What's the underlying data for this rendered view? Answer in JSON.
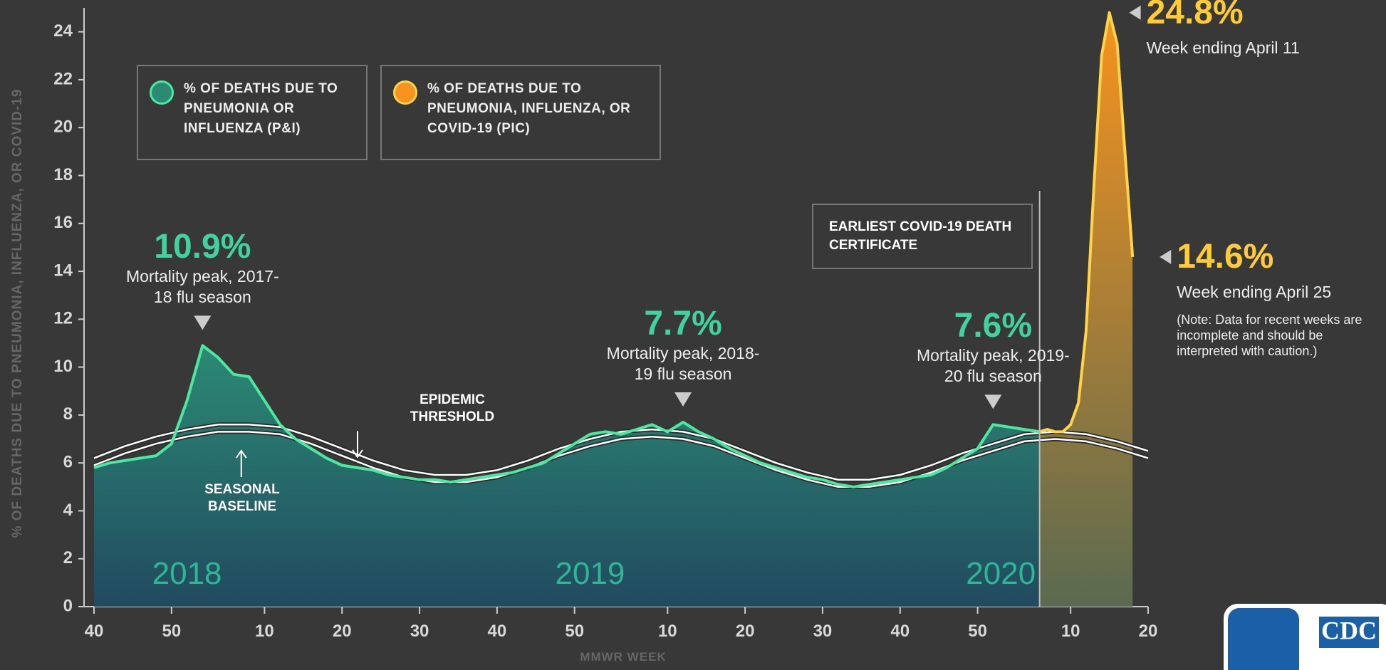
{
  "chart_data": {
    "type": "area",
    "y_label": "% OF DEATHS DUE TO PNEUMONIA, INFLUENZA, OR COVID-19",
    "x_label": "MMWR WEEK",
    "xlim": [
      0,
      136
    ],
    "xticks": [
      {
        "value": 0,
        "label": "40"
      },
      {
        "value": 10,
        "label": "50"
      },
      {
        "value": 22,
        "label": "10"
      },
      {
        "value": 32,
        "label": "20"
      },
      {
        "value": 42,
        "label": "30"
      },
      {
        "value": 52,
        "label": "40"
      },
      {
        "value": 62,
        "label": "50"
      },
      {
        "value": 74,
        "label": "10"
      },
      {
        "value": 84,
        "label": "20"
      },
      {
        "value": 94,
        "label": "30"
      },
      {
        "value": 104,
        "label": "40"
      },
      {
        "value": 114,
        "label": "50"
      },
      {
        "value": 126,
        "label": "10"
      },
      {
        "value": 136,
        "label": "20"
      }
    ],
    "ylim": [
      0,
      25
    ],
    "yticks": [
      0,
      2,
      4,
      6,
      8,
      10,
      12,
      14,
      16,
      18,
      20,
      22,
      24
    ],
    "series": [
      {
        "name": "% OF DEATHS DUE TO PNEUMONIA OR INFLUENZA (P&I)",
        "style": "area",
        "color": "#4be8a0",
        "fill_top": "#2b8a74",
        "fill_bottom": "#214a60",
        "x": [
          0,
          2,
          4,
          6,
          8,
          10,
          12,
          14,
          16,
          18,
          20,
          22,
          24,
          26,
          28,
          30,
          32,
          34,
          36,
          38,
          40,
          42,
          44,
          46,
          48,
          50,
          52,
          54,
          56,
          58,
          60,
          62,
          64,
          66,
          68,
          70,
          72,
          74,
          76,
          78,
          80,
          82,
          84,
          86,
          88,
          90,
          92,
          94,
          96,
          98,
          100,
          102,
          104,
          106,
          108,
          110,
          112,
          114,
          116,
          118,
          120,
          122
        ],
        "values": [
          5.8,
          6.0,
          6.1,
          6.2,
          6.3,
          6.8,
          8.6,
          10.9,
          10.4,
          9.7,
          9.6,
          8.6,
          7.6,
          7.0,
          6.6,
          6.2,
          5.9,
          5.8,
          5.7,
          5.5,
          5.4,
          5.3,
          5.3,
          5.2,
          5.3,
          5.4,
          5.5,
          5.6,
          5.8,
          6.0,
          6.4,
          6.8,
          7.2,
          7.3,
          7.2,
          7.4,
          7.6,
          7.3,
          7.7,
          7.3,
          7.0,
          6.6,
          6.3,
          6.0,
          5.8,
          5.6,
          5.4,
          5.3,
          5.1,
          5.0,
          5.1,
          5.2,
          5.3,
          5.4,
          5.5,
          5.8,
          6.2,
          6.6,
          7.6,
          7.5,
          7.4,
          7.3
        ]
      },
      {
        "name": "% OF DEATHS DUE TO PNEUMONIA, INFLUENZA, OR COVID-19 (PIC)",
        "style": "area",
        "color": "#ffd447",
        "fill_top": "#f7931e",
        "fill_bottom": "#5a6a50",
        "x": [
          122,
          123,
          124,
          125,
          126,
          127,
          128,
          129,
          130,
          131,
          132,
          133,
          134
        ],
        "values": [
          7.3,
          7.4,
          7.3,
          7.3,
          7.6,
          8.5,
          11.5,
          17.5,
          23.0,
          24.8,
          23.5,
          19.0,
          14.6
        ]
      },
      {
        "name": "SEASONAL BASELINE",
        "style": "line",
        "color": "#ffffff",
        "x": [
          0,
          4,
          8,
          12,
          16,
          20,
          24,
          28,
          32,
          36,
          40,
          44,
          48,
          52,
          56,
          60,
          64,
          68,
          72,
          76,
          80,
          84,
          88,
          92,
          96,
          100,
          104,
          108,
          112,
          116,
          120,
          124,
          128,
          132,
          136
        ],
        "values": [
          5.9,
          6.4,
          6.8,
          7.1,
          7.3,
          7.3,
          7.2,
          6.8,
          6.3,
          5.8,
          5.4,
          5.2,
          5.2,
          5.4,
          5.8,
          6.3,
          6.7,
          7.0,
          7.1,
          7.0,
          6.7,
          6.2,
          5.7,
          5.3,
          5.0,
          5.0,
          5.2,
          5.6,
          6.1,
          6.5,
          6.9,
          7.0,
          6.9,
          6.6,
          6.2
        ]
      },
      {
        "name": "EPIDEMIC THRESHOLD",
        "style": "line",
        "color": "#ffffff",
        "x": [
          0,
          4,
          8,
          12,
          16,
          20,
          24,
          28,
          32,
          36,
          40,
          44,
          48,
          52,
          56,
          60,
          64,
          68,
          72,
          76,
          80,
          84,
          88,
          92,
          96,
          100,
          104,
          108,
          112,
          116,
          120,
          124,
          128,
          132,
          136
        ],
        "values": [
          6.2,
          6.7,
          7.1,
          7.4,
          7.6,
          7.6,
          7.5,
          7.1,
          6.6,
          6.1,
          5.7,
          5.5,
          5.5,
          5.7,
          6.1,
          6.6,
          7.0,
          7.3,
          7.4,
          7.3,
          7.0,
          6.5,
          6.0,
          5.6,
          5.3,
          5.3,
          5.5,
          5.9,
          6.4,
          6.8,
          7.2,
          7.3,
          7.2,
          6.9,
          6.5
        ]
      }
    ],
    "peaks": [
      {
        "x": 14,
        "value": 10.9,
        "label": "10.9%",
        "note": "Mortality peak, 2017-18 flu season"
      },
      {
        "x": 76,
        "value": 7.7,
        "label": "7.7%",
        "note": "Mortality peak, 2018-19 flu season"
      },
      {
        "x": 116,
        "value": 7.6,
        "label": "7.6%",
        "note": "Mortality peak, 2019-20 flu season"
      }
    ],
    "callouts": [
      {
        "x": 131,
        "value": 24.8,
        "label": "24.8%",
        "note": "Week ending April 11"
      },
      {
        "x": 134,
        "value": 14.6,
        "label": "14.6%",
        "note": "Week ending April 25",
        "caution": "(Note: Data for recent weeks are incomplete and should be interpreted with caution.)"
      }
    ],
    "years": [
      {
        "x": 12,
        "label": "2018"
      },
      {
        "x": 64,
        "label": "2019"
      },
      {
        "x": 117,
        "label": "2020"
      }
    ],
    "covid_marker": {
      "x": 122,
      "label": "EARLIEST COVID-19 DEATH CERTIFICATE"
    }
  },
  "logo": "CDC"
}
